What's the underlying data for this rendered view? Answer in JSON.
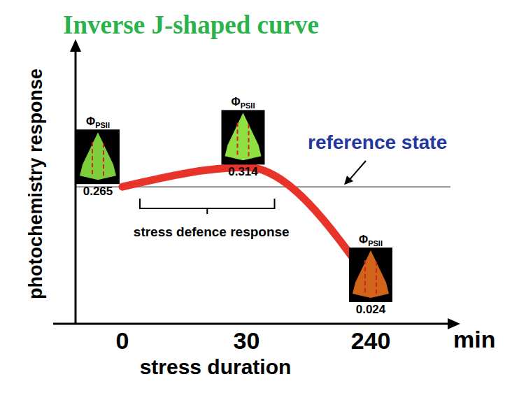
{
  "chart_data": {
    "type": "line",
    "title": "Inverse J-shaped curve",
    "xlabel": "stress duration",
    "ylabel": "photochemistry response",
    "x_unit": "min",
    "categories": [
      "0",
      "30",
      "240"
    ],
    "values": [
      0.265,
      0.314,
      0.024
    ],
    "color": "#e8332a",
    "ylim": [
      -0.08,
      0.63
    ],
    "tick_labels": "x",
    "data_labels": true,
    "reference_line": {
      "value": 0.265,
      "label": "reference state"
    },
    "point_label": "ΦPSII",
    "bracket": {
      "from": "0",
      "to": "30",
      "label": "stress defence response"
    }
  }
}
